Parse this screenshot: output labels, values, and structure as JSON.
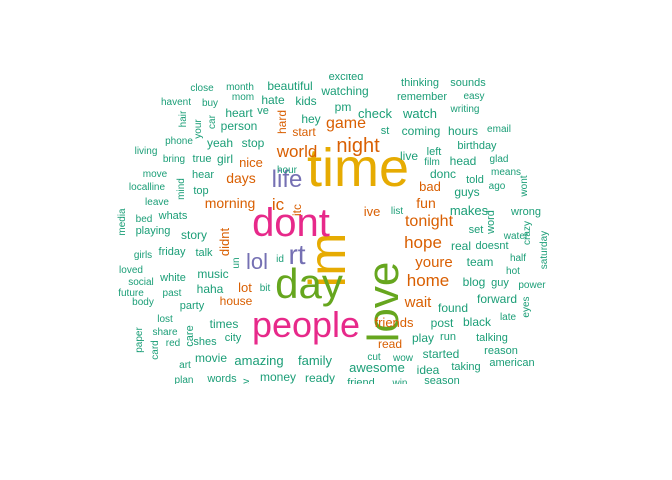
{
  "palette": {
    "teal": "#1b9e77",
    "orange": "#d95f02",
    "purple": "#7570b3",
    "magenta": "#e7298a",
    "green": "#66a61e",
    "gold": "#e6ab02"
  },
  "words": [
    {
      "text": "time",
      "color": "gold"
    },
    {
      "text": "im",
      "color": "gold"
    },
    {
      "text": "love",
      "color": "green"
    },
    {
      "text": "dont",
      "color": "magenta"
    },
    {
      "text": "people",
      "color": "magenta"
    },
    {
      "text": "day",
      "color": "green"
    },
    {
      "text": "rt",
      "color": "purple"
    },
    {
      "text": "life",
      "color": "purple"
    },
    {
      "text": "lol",
      "color": "purple"
    },
    {
      "text": "night",
      "color": "orange"
    },
    {
      "text": "world",
      "color": "orange"
    },
    {
      "text": "game",
      "color": "orange"
    },
    {
      "text": "home",
      "color": "orange"
    },
    {
      "text": "hope",
      "color": "orange"
    },
    {
      "text": "tonight",
      "color": "orange"
    },
    {
      "text": "youre",
      "color": "orange"
    },
    {
      "text": "ic",
      "color": "orange"
    },
    {
      "text": "wait",
      "color": "orange"
    },
    {
      "text": "friends",
      "color": "orange"
    },
    {
      "text": "days",
      "color": "orange"
    },
    {
      "text": "morning",
      "color": "orange"
    },
    {
      "text": "fun",
      "color": "orange"
    },
    {
      "text": "bad",
      "color": "orange"
    },
    {
      "text": "didnt",
      "color": "orange"
    },
    {
      "text": "lot",
      "color": "orange"
    },
    {
      "text": "house",
      "color": "orange"
    },
    {
      "text": "nice",
      "color": "orange"
    },
    {
      "text": "read",
      "color": "orange"
    },
    {
      "text": "start",
      "color": "orange"
    },
    {
      "text": "ive",
      "color": "orange"
    },
    {
      "text": "itc",
      "color": "orange"
    },
    {
      "text": "hard",
      "color": "orange"
    },
    {
      "text": "excited",
      "color": "teal"
    },
    {
      "text": "thinking",
      "color": "teal"
    },
    {
      "text": "sounds",
      "color": "teal"
    },
    {
      "text": "close",
      "color": "teal"
    },
    {
      "text": "month",
      "color": "teal"
    },
    {
      "text": "beautiful",
      "color": "teal"
    },
    {
      "text": "watching",
      "color": "teal"
    },
    {
      "text": "remember",
      "color": "teal"
    },
    {
      "text": "easy",
      "color": "teal"
    },
    {
      "text": "havent",
      "color": "teal"
    },
    {
      "text": "buy",
      "color": "teal"
    },
    {
      "text": "mom",
      "color": "teal"
    },
    {
      "text": "hate",
      "color": "teal"
    },
    {
      "text": "kids",
      "color": "teal"
    },
    {
      "text": "writing",
      "color": "teal"
    },
    {
      "text": "heart",
      "color": "teal"
    },
    {
      "text": "ve",
      "color": "teal"
    },
    {
      "text": "pm",
      "color": "teal"
    },
    {
      "text": "check",
      "color": "teal"
    },
    {
      "text": "watch",
      "color": "teal"
    },
    {
      "text": "hair",
      "color": "teal"
    },
    {
      "text": "your",
      "color": "teal"
    },
    {
      "text": "car",
      "color": "teal"
    },
    {
      "text": "person",
      "color": "teal"
    },
    {
      "text": "hey",
      "color": "teal"
    },
    {
      "text": "st",
      "color": "teal"
    },
    {
      "text": "coming",
      "color": "teal"
    },
    {
      "text": "hours",
      "color": "teal"
    },
    {
      "text": "email",
      "color": "teal"
    },
    {
      "text": "phone",
      "color": "teal"
    },
    {
      "text": "yeah",
      "color": "teal"
    },
    {
      "text": "stop",
      "color": "teal"
    },
    {
      "text": "birthday",
      "color": "teal"
    },
    {
      "text": "living",
      "color": "teal"
    },
    {
      "text": "bring",
      "color": "teal"
    },
    {
      "text": "true",
      "color": "teal"
    },
    {
      "text": "girl",
      "color": "teal"
    },
    {
      "text": "live",
      "color": "teal"
    },
    {
      "text": "left",
      "color": "teal"
    },
    {
      "text": "film",
      "color": "teal"
    },
    {
      "text": "head",
      "color": "teal"
    },
    {
      "text": "glad",
      "color": "teal"
    },
    {
      "text": "move",
      "color": "teal"
    },
    {
      "text": "hour",
      "color": "teal"
    },
    {
      "text": "donc",
      "color": "teal"
    },
    {
      "text": "told",
      "color": "teal"
    },
    {
      "text": "means",
      "color": "teal"
    },
    {
      "text": "hear",
      "color": "teal"
    },
    {
      "text": "guys",
      "color": "teal"
    },
    {
      "text": "ago",
      "color": "teal"
    },
    {
      "text": "localline",
      "color": "teal"
    },
    {
      "text": "mind",
      "color": "teal"
    },
    {
      "text": "top",
      "color": "teal"
    },
    {
      "text": "wont",
      "color": "teal"
    },
    {
      "text": "leave",
      "color": "teal"
    },
    {
      "text": "makes",
      "color": "teal"
    },
    {
      "text": "media",
      "color": "teal"
    },
    {
      "text": "bed",
      "color": "teal"
    },
    {
      "text": "whats",
      "color": "teal"
    },
    {
      "text": "list",
      "color": "teal"
    },
    {
      "text": "word",
      "color": "teal"
    },
    {
      "text": "wrong",
      "color": "teal"
    },
    {
      "text": "crazy",
      "color": "teal"
    },
    {
      "text": "story",
      "color": "teal"
    },
    {
      "text": "set",
      "color": "teal"
    },
    {
      "text": "girls",
      "color": "teal"
    },
    {
      "text": "friday",
      "color": "teal"
    },
    {
      "text": "talk",
      "color": "teal"
    },
    {
      "text": "real",
      "color": "teal"
    },
    {
      "text": "doesnt",
      "color": "teal"
    },
    {
      "text": "water",
      "color": "teal"
    },
    {
      "text": "saturday",
      "color": "teal"
    },
    {
      "text": "playing",
      "color": "teal"
    },
    {
      "text": "loved",
      "color": "teal"
    },
    {
      "text": "un",
      "color": "teal"
    },
    {
      "text": "id",
      "color": "teal"
    },
    {
      "text": "team",
      "color": "teal"
    },
    {
      "text": "half",
      "color": "teal"
    },
    {
      "text": "social",
      "color": "teal"
    },
    {
      "text": "white",
      "color": "teal"
    },
    {
      "text": "music",
      "color": "teal"
    },
    {
      "text": "hot",
      "color": "teal"
    },
    {
      "text": "future",
      "color": "teal"
    },
    {
      "text": "blog",
      "color": "teal"
    },
    {
      "text": "guy",
      "color": "teal"
    },
    {
      "text": "power",
      "color": "teal"
    },
    {
      "text": "past",
      "color": "teal"
    },
    {
      "text": "haha",
      "color": "teal"
    },
    {
      "text": "bit",
      "color": "teal"
    },
    {
      "text": "body",
      "color": "teal"
    },
    {
      "text": "party",
      "color": "teal"
    },
    {
      "text": "found",
      "color": "teal"
    },
    {
      "text": "forward",
      "color": "teal"
    },
    {
      "text": "eyes",
      "color": "teal"
    },
    {
      "text": "lost",
      "color": "teal"
    },
    {
      "text": "late",
      "color": "teal"
    },
    {
      "text": "times",
      "color": "teal"
    },
    {
      "text": "post",
      "color": "teal"
    },
    {
      "text": "black",
      "color": "teal"
    },
    {
      "text": "paper",
      "color": "teal"
    },
    {
      "text": "share",
      "color": "teal"
    },
    {
      "text": "care",
      "color": "teal"
    },
    {
      "text": "city",
      "color": "teal"
    },
    {
      "text": "play",
      "color": "teal"
    },
    {
      "text": "run",
      "color": "teal"
    },
    {
      "text": "talking",
      "color": "teal"
    },
    {
      "text": "card",
      "color": "teal"
    },
    {
      "text": "red",
      "color": "teal"
    },
    {
      "text": "shes",
      "color": "teal"
    },
    {
      "text": "reason",
      "color": "teal"
    },
    {
      "text": "amazing",
      "color": "teal"
    },
    {
      "text": "family",
      "color": "teal"
    },
    {
      "text": "art",
      "color": "teal"
    },
    {
      "text": "movie",
      "color": "teal"
    },
    {
      "text": "cut",
      "color": "teal"
    },
    {
      "text": "wow",
      "color": "teal"
    },
    {
      "text": "awesome",
      "color": "teal"
    },
    {
      "text": "started",
      "color": "teal"
    },
    {
      "text": "american",
      "color": "teal"
    },
    {
      "text": "idea",
      "color": "teal"
    },
    {
      "text": "taking",
      "color": "teal"
    },
    {
      "text": "plan",
      "color": "teal"
    },
    {
      "text": "words",
      "color": "teal"
    },
    {
      "text": "money",
      "color": "teal"
    },
    {
      "text": "ready",
      "color": "teal"
    },
    {
      "text": "friend",
      "color": "teal"
    },
    {
      "text": "win",
      "color": "teal"
    },
    {
      "text": "season",
      "color": "teal"
    },
    {
      "text": "av",
      "color": "teal"
    }
  ]
}
